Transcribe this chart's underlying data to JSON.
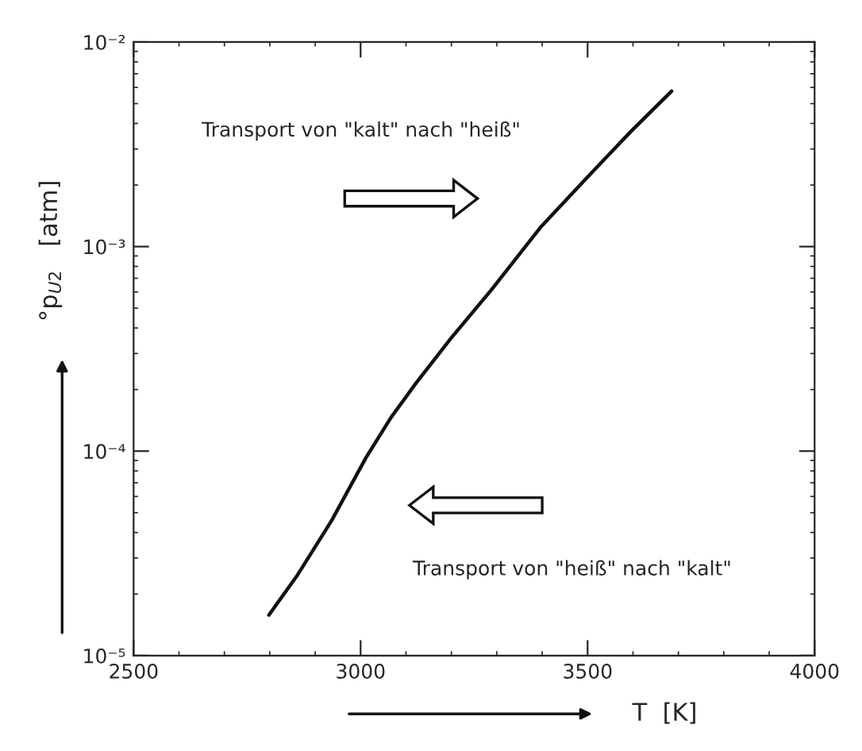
{
  "chart_data": {
    "type": "line",
    "xlabel": "T  [K]",
    "ylabel": "°p$_{U2}$   [atm]",
    "series": [
      {
        "color": "#111111",
        "x": [
          2798,
          2859,
          2936,
          3012,
          3067,
          3122,
          3199,
          3287,
          3396,
          3495,
          3594,
          3685
        ],
        "values": [
          1.58e-05,
          2.44e-05,
          4.57e-05,
          9.3e-05,
          0.000146,
          0.000215,
          0.000356,
          0.00061,
          0.00124,
          0.00213,
          0.00363,
          0.00575
        ]
      }
    ],
    "xlim": [
      2500,
      4000
    ],
    "xticks": [
      2500,
      3000,
      3500,
      4000
    ],
    "ylim": [
      1e-05,
      0.01
    ],
    "yticks": [
      {
        "value": 1e-05,
        "label": "10⁻⁵"
      },
      {
        "value": 0.0001,
        "label": "10⁻⁴"
      },
      {
        "value": 0.001,
        "label": "10⁻³"
      },
      {
        "value": 0.01,
        "label": "10⁻²"
      }
    ],
    "log": "y",
    "grid": false,
    "legend": false,
    "marker": "none",
    "line_style": "solid",
    "annotations": [
      "Transport von \"kalt\" nach \"heiß\"",
      "Transport von \"heiß\" nach \"kalt\""
    ]
  }
}
